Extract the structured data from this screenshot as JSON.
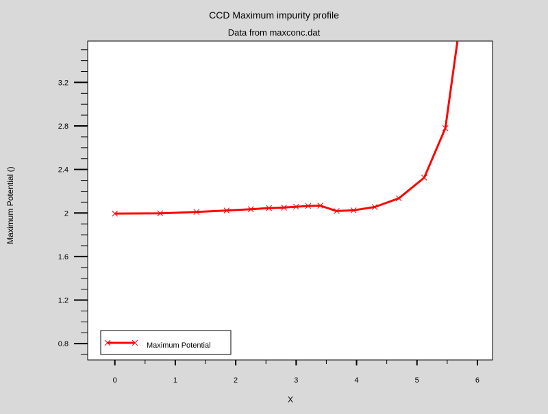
{
  "chart_data": {
    "type": "line",
    "title": "CCD Maximum impurity profile",
    "subtitle": "Data from maxconc.dat",
    "xlabel": "X",
    "ylabel": "Maximum Potential ()",
    "xlim": [
      -0.45,
      6.25
    ],
    "ylim": [
      0.65,
      3.58
    ],
    "x_ticks": [
      0,
      1,
      2,
      3,
      4,
      5,
      6
    ],
    "x_tick_labels": [
      "0",
      "1",
      "2",
      "3",
      "4",
      "5",
      "6"
    ],
    "y_ticks": [
      0.8,
      1.2,
      1.6,
      2.0,
      2.4,
      2.8,
      3.2
    ],
    "y_tick_labels": [
      "0.8",
      "1.2",
      "1.6",
      "2",
      "2.4",
      "2.8",
      "3.2"
    ],
    "y_minor_step": 0.1,
    "grid": false,
    "legend_position": "bottom-left",
    "series": [
      {
        "name": "Maximum Potential",
        "color": "#ff0000",
        "marker": "x",
        "x": [
          0.0,
          0.75,
          1.35,
          1.85,
          2.25,
          2.55,
          2.8,
          3.0,
          3.2,
          3.4,
          3.67,
          3.95,
          4.3,
          4.7,
          5.12,
          5.47,
          5.67
        ],
        "y": [
          1.995,
          1.997,
          2.01,
          2.023,
          2.035,
          2.045,
          2.05,
          2.058,
          2.065,
          2.068,
          2.018,
          2.025,
          2.055,
          2.135,
          2.325,
          2.78,
          3.58
        ],
        "markers": [
          true,
          true,
          true,
          true,
          true,
          true,
          true,
          true,
          true,
          true,
          true,
          true,
          true,
          true,
          true,
          true,
          false
        ]
      }
    ]
  }
}
